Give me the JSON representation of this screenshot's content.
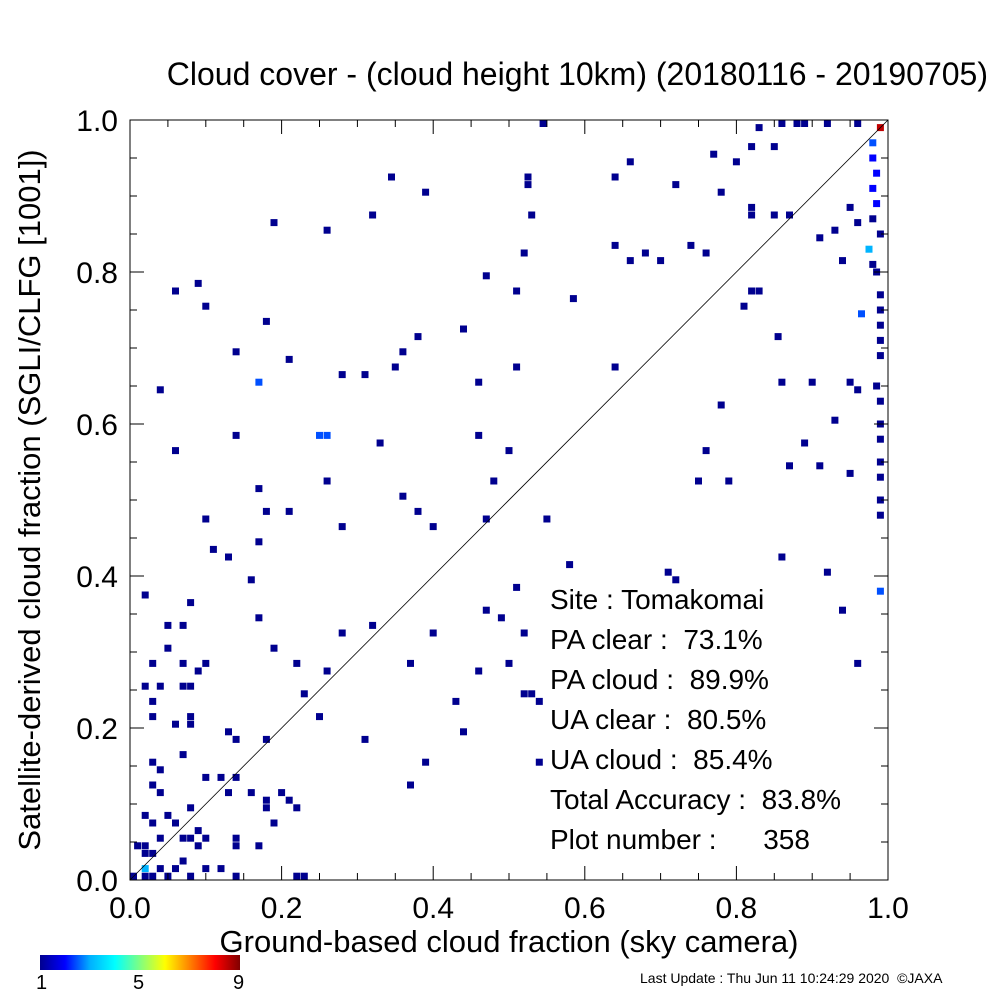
{
  "title": "Cloud cover - (cloud height 10km)  (20180116 - 20190705)",
  "stats": {
    "site": "Site : Tomakomai",
    "pa_clear": "PA clear :  73.1%",
    "pa_cloud": "PA cloud :  89.9%",
    "ua_clear": "UA clear :  80.5%",
    "ua_cloud": "UA cloud :  85.4%",
    "total_accuracy": "Total Accuracy :  83.8%",
    "plot_number": "Plot number :      358"
  },
  "colorbar": {
    "min_label": "1",
    "mid_label": "5",
    "max_label": "9"
  },
  "footer": "Last Update : Thu Jun 11 10:24:29 2020  ©JAXA",
  "colors": {
    "dark": "#00008f",
    "mid": "#0050ff",
    "light": "#00b4ff",
    "max": "#c00000"
  },
  "chart_data": {
    "type": "heatmap",
    "title": "Cloud cover - (cloud height 10km)  (20180116 - 20190705)",
    "xlabel": "Ground-based cloud fraction (sky camera)",
    "ylabel": "Satellite-derived cloud fraction (SGLI/CLFG [1001])",
    "xlim": [
      0,
      1
    ],
    "ylim": [
      0,
      1
    ],
    "xticks": [
      "0.0",
      "0.2",
      "0.4",
      "0.6",
      "0.8",
      "1.0"
    ],
    "yticks": [
      "0.0",
      "0.2",
      "0.4",
      "0.6",
      "0.8",
      "1.0"
    ],
    "reference_line": "y = x",
    "count_range": [
      1,
      9
    ],
    "points": [
      [
        0.545,
        1.0,
        1
      ],
      [
        0.86,
        1.0,
        1
      ],
      [
        0.88,
        1.0,
        1
      ],
      [
        0.89,
        1.0,
        1
      ],
      [
        0.92,
        1.0,
        1
      ],
      [
        0.96,
        1.0,
        1
      ],
      [
        0.99,
        0.99,
        9
      ],
      [
        0.83,
        0.99,
        1
      ],
      [
        0.66,
        0.945,
        1
      ],
      [
        0.8,
        0.945,
        1
      ],
      [
        0.77,
        0.955,
        1
      ],
      [
        0.82,
        0.965,
        1
      ],
      [
        0.85,
        0.965,
        1
      ],
      [
        0.98,
        0.97,
        3
      ],
      [
        0.98,
        0.95,
        2
      ],
      [
        0.985,
        0.93,
        2
      ],
      [
        0.98,
        0.91,
        2
      ],
      [
        0.985,
        0.89,
        2
      ],
      [
        0.98,
        0.87,
        1
      ],
      [
        0.99,
        0.85,
        1
      ],
      [
        0.975,
        0.83,
        4
      ],
      [
        0.98,
        0.81,
        1
      ],
      [
        0.985,
        0.8,
        1
      ],
      [
        0.99,
        0.77,
        1
      ],
      [
        0.99,
        0.75,
        1
      ],
      [
        0.965,
        0.745,
        3
      ],
      [
        0.99,
        0.73,
        1
      ],
      [
        0.99,
        0.71,
        1
      ],
      [
        0.99,
        0.69,
        1
      ],
      [
        0.985,
        0.65,
        1
      ],
      [
        0.99,
        0.63,
        1
      ],
      [
        0.99,
        0.6,
        1
      ],
      [
        0.99,
        0.58,
        1
      ],
      [
        0.99,
        0.55,
        1
      ],
      [
        0.99,
        0.53,
        1
      ],
      [
        0.99,
        0.5,
        1
      ],
      [
        0.99,
        0.48,
        1
      ],
      [
        0.99,
        0.38,
        3
      ],
      [
        0.345,
        0.925,
        1
      ],
      [
        0.525,
        0.925,
        1
      ],
      [
        0.525,
        0.915,
        1
      ],
      [
        0.64,
        0.925,
        1
      ],
      [
        0.72,
        0.915,
        1
      ],
      [
        0.78,
        0.905,
        1
      ],
      [
        0.39,
        0.905,
        1
      ],
      [
        0.82,
        0.885,
        1
      ],
      [
        0.82,
        0.875,
        1
      ],
      [
        0.85,
        0.875,
        1
      ],
      [
        0.87,
        0.875,
        1
      ],
      [
        0.95,
        0.885,
        1
      ],
      [
        0.32,
        0.875,
        1
      ],
      [
        0.53,
        0.875,
        1
      ],
      [
        0.19,
        0.865,
        1
      ],
      [
        0.26,
        0.855,
        1
      ],
      [
        0.96,
        0.865,
        1
      ],
      [
        0.93,
        0.855,
        1
      ],
      [
        0.91,
        0.845,
        1
      ],
      [
        0.74,
        0.835,
        1
      ],
      [
        0.76,
        0.825,
        1
      ],
      [
        0.64,
        0.835,
        1
      ],
      [
        0.52,
        0.825,
        1
      ],
      [
        0.68,
        0.825,
        1
      ],
      [
        0.66,
        0.815,
        1
      ],
      [
        0.7,
        0.815,
        1
      ],
      [
        0.94,
        0.815,
        1
      ],
      [
        0.47,
        0.795,
        1
      ],
      [
        0.09,
        0.785,
        1
      ],
      [
        0.06,
        0.775,
        1
      ],
      [
        0.51,
        0.775,
        1
      ],
      [
        0.83,
        0.775,
        1
      ],
      [
        0.82,
        0.775,
        1
      ],
      [
        0.81,
        0.755,
        1
      ],
      [
        0.585,
        0.765,
        1
      ],
      [
        0.1,
        0.755,
        1
      ],
      [
        0.18,
        0.735,
        1
      ],
      [
        0.44,
        0.725,
        1
      ],
      [
        0.38,
        0.715,
        1
      ],
      [
        0.855,
        0.715,
        1
      ],
      [
        0.14,
        0.695,
        1
      ],
      [
        0.36,
        0.695,
        1
      ],
      [
        0.21,
        0.685,
        1
      ],
      [
        0.35,
        0.675,
        1
      ],
      [
        0.64,
        0.675,
        1
      ],
      [
        0.51,
        0.675,
        1
      ],
      [
        0.28,
        0.665,
        1
      ],
      [
        0.31,
        0.665,
        1
      ],
      [
        0.17,
        0.655,
        3
      ],
      [
        0.46,
        0.655,
        1
      ],
      [
        0.86,
        0.655,
        1
      ],
      [
        0.9,
        0.655,
        1
      ],
      [
        0.95,
        0.655,
        1
      ],
      [
        0.04,
        0.645,
        1
      ],
      [
        0.96,
        0.645,
        1
      ],
      [
        0.78,
        0.625,
        1
      ],
      [
        0.93,
        0.605,
        1
      ],
      [
        0.14,
        0.585,
        1
      ],
      [
        0.25,
        0.585,
        3
      ],
      [
        0.26,
        0.585,
        3
      ],
      [
        0.33,
        0.575,
        1
      ],
      [
        0.46,
        0.585,
        1
      ],
      [
        0.06,
        0.565,
        1
      ],
      [
        0.76,
        0.565,
        1
      ],
      [
        0.89,
        0.575,
        1
      ],
      [
        0.5,
        0.565,
        1
      ],
      [
        0.87,
        0.545,
        1
      ],
      [
        0.91,
        0.545,
        1
      ],
      [
        0.95,
        0.535,
        1
      ],
      [
        0.17,
        0.515,
        1
      ],
      [
        0.26,
        0.525,
        1
      ],
      [
        0.48,
        0.525,
        1
      ],
      [
        0.75,
        0.525,
        1
      ],
      [
        0.79,
        0.525,
        1
      ],
      [
        0.36,
        0.505,
        1
      ],
      [
        0.38,
        0.485,
        1
      ],
      [
        0.18,
        0.485,
        1
      ],
      [
        0.21,
        0.485,
        1
      ],
      [
        0.1,
        0.475,
        1
      ],
      [
        0.28,
        0.465,
        1
      ],
      [
        0.4,
        0.465,
        1
      ],
      [
        0.47,
        0.475,
        1
      ],
      [
        0.55,
        0.475,
        1
      ],
      [
        0.17,
        0.445,
        1
      ],
      [
        0.11,
        0.435,
        1
      ],
      [
        0.13,
        0.425,
        1
      ],
      [
        0.58,
        0.415,
        1
      ],
      [
        0.71,
        0.405,
        1
      ],
      [
        0.72,
        0.395,
        1
      ],
      [
        0.86,
        0.425,
        1
      ],
      [
        0.92,
        0.405,
        1
      ],
      [
        0.16,
        0.395,
        1
      ],
      [
        0.51,
        0.385,
        1
      ],
      [
        0.02,
        0.375,
        1
      ],
      [
        0.08,
        0.365,
        1
      ],
      [
        0.47,
        0.355,
        1
      ],
      [
        0.49,
        0.345,
        1
      ],
      [
        0.94,
        0.355,
        1
      ],
      [
        0.05,
        0.335,
        1
      ],
      [
        0.07,
        0.335,
        1
      ],
      [
        0.17,
        0.345,
        1
      ],
      [
        0.32,
        0.335,
        1
      ],
      [
        0.28,
        0.325,
        1
      ],
      [
        0.4,
        0.325,
        1
      ],
      [
        0.52,
        0.325,
        1
      ],
      [
        0.05,
        0.305,
        1
      ],
      [
        0.19,
        0.305,
        1
      ],
      [
        0.03,
        0.285,
        1
      ],
      [
        0.07,
        0.285,
        1
      ],
      [
        0.09,
        0.275,
        1
      ],
      [
        0.1,
        0.285,
        1
      ],
      [
        0.22,
        0.285,
        1
      ],
      [
        0.37,
        0.285,
        1
      ],
      [
        0.46,
        0.275,
        1
      ],
      [
        0.5,
        0.285,
        1
      ],
      [
        0.26,
        0.275,
        1
      ],
      [
        0.96,
        0.285,
        1
      ],
      [
        0.02,
        0.255,
        1
      ],
      [
        0.04,
        0.255,
        1
      ],
      [
        0.07,
        0.255,
        1
      ],
      [
        0.08,
        0.255,
        1
      ],
      [
        0.23,
        0.245,
        1
      ],
      [
        0.52,
        0.245,
        1
      ],
      [
        0.53,
        0.245,
        1
      ],
      [
        0.43,
        0.235,
        1
      ],
      [
        0.54,
        0.235,
        1
      ],
      [
        0.03,
        0.235,
        1
      ],
      [
        0.03,
        0.215,
        1
      ],
      [
        0.06,
        0.205,
        1
      ],
      [
        0.08,
        0.205,
        1
      ],
      [
        0.08,
        0.215,
        1
      ],
      [
        0.25,
        0.215,
        1
      ],
      [
        0.13,
        0.195,
        1
      ],
      [
        0.14,
        0.185,
        1
      ],
      [
        0.18,
        0.185,
        1
      ],
      [
        0.31,
        0.185,
        1
      ],
      [
        0.44,
        0.195,
        1
      ],
      [
        0.07,
        0.165,
        1
      ],
      [
        0.03,
        0.155,
        1
      ],
      [
        0.39,
        0.155,
        1
      ],
      [
        0.54,
        0.155,
        1
      ],
      [
        0.04,
        0.145,
        1
      ],
      [
        0.03,
        0.125,
        1
      ],
      [
        0.1,
        0.135,
        1
      ],
      [
        0.12,
        0.135,
        1
      ],
      [
        0.14,
        0.135,
        1
      ],
      [
        0.37,
        0.125,
        1
      ],
      [
        0.04,
        0.115,
        1
      ],
      [
        0.13,
        0.115,
        1
      ],
      [
        0.16,
        0.115,
        1
      ],
      [
        0.2,
        0.115,
        1
      ],
      [
        0.18,
        0.105,
        1
      ],
      [
        0.08,
        0.095,
        1
      ],
      [
        0.21,
        0.105,
        1
      ],
      [
        0.02,
        0.085,
        1
      ],
      [
        0.05,
        0.085,
        1
      ],
      [
        0.18,
        0.095,
        1
      ],
      [
        0.22,
        0.095,
        1
      ],
      [
        0.03,
        0.075,
        1
      ],
      [
        0.06,
        0.075,
        1
      ],
      [
        0.09,
        0.065,
        1
      ],
      [
        0.19,
        0.075,
        1
      ],
      [
        0.1,
        0.055,
        1
      ],
      [
        0.04,
        0.055,
        1
      ],
      [
        0.07,
        0.055,
        1
      ],
      [
        0.02,
        0.045,
        1
      ],
      [
        0.08,
        0.055,
        1
      ],
      [
        0.14,
        0.055,
        1
      ],
      [
        0.09,
        0.045,
        1
      ],
      [
        0.01,
        0.045,
        1
      ],
      [
        0.02,
        0.035,
        1
      ],
      [
        0.03,
        0.035,
        1
      ],
      [
        0.14,
        0.045,
        1
      ],
      [
        0.17,
        0.045,
        1
      ],
      [
        0.07,
        0.025,
        1
      ],
      [
        0.1,
        0.015,
        1
      ],
      [
        0.12,
        0.015,
        1
      ],
      [
        0.02,
        0.015,
        4
      ],
      [
        0.04,
        0.015,
        1
      ],
      [
        0.06,
        0.015,
        1
      ],
      [
        0.03,
        0.005,
        1
      ],
      [
        0.02,
        0.005,
        1
      ],
      [
        0.05,
        0.005,
        1
      ],
      [
        0.08,
        0.005,
        1
      ],
      [
        0.14,
        0.005,
        1
      ],
      [
        0.22,
        0.005,
        1
      ],
      [
        0.23,
        0.005,
        1
      ],
      [
        0.0,
        0.005,
        1
      ]
    ]
  }
}
